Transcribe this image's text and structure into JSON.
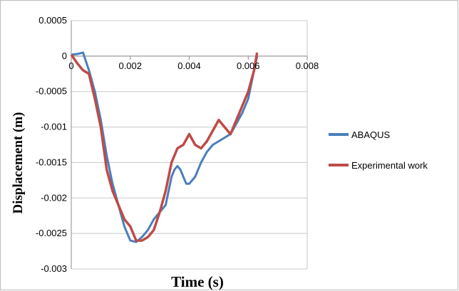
{
  "chart_data": {
    "type": "line",
    "xlabel": "Time (s)",
    "ylabel": "Displacement (m)",
    "xlim": [
      0,
      0.008
    ],
    "ylim": [
      -0.003,
      0.0005
    ],
    "x_ticks": [
      "0",
      "0.002",
      "0.004",
      "0.006",
      "0.008"
    ],
    "y_ticks": [
      "0.0005",
      "0",
      "-0.0005",
      "-0.001",
      "-0.0015",
      "-0.002",
      "-0.0025",
      "-0.003"
    ],
    "grid": "horizontal",
    "legend_position": "right",
    "series": [
      {
        "name": "ABAQUS",
        "color": "#4a7ebb",
        "x": [
          0,
          0.0002,
          0.0004,
          0.0006,
          0.0008,
          0.001,
          0.0012,
          0.0014,
          0.0016,
          0.0018,
          0.002,
          0.0022,
          0.0024,
          0.0026,
          0.0028,
          0.003,
          0.0032,
          0.0034,
          0.0035,
          0.0036,
          0.0037,
          0.0038,
          0.0039,
          0.004,
          0.0042,
          0.0044,
          0.0046,
          0.0048,
          0.005,
          0.0052,
          0.0054,
          0.0056,
          0.0058,
          0.006,
          0.0062,
          0.0063
        ],
        "y": [
          2e-05,
          3e-05,
          5e-05,
          -0.0002,
          -0.0005,
          -0.0009,
          -0.0014,
          -0.0018,
          -0.0021,
          -0.0024,
          -0.0026,
          -0.00262,
          -0.00255,
          -0.00245,
          -0.0023,
          -0.0022,
          -0.0021,
          -0.0017,
          -0.0016,
          -0.00155,
          -0.0016,
          -0.0017,
          -0.0018,
          -0.0018,
          -0.0017,
          -0.0015,
          -0.00135,
          -0.00125,
          -0.0012,
          -0.00115,
          -0.0011,
          -0.00095,
          -0.0008,
          -0.0006,
          -0.0002,
          0.0
        ]
      },
      {
        "name": "Experimental work",
        "color": "#be4b48",
        "x": [
          0,
          0.0002,
          0.0004,
          0.0006,
          0.0008,
          0.001,
          0.0012,
          0.0014,
          0.0016,
          0.0018,
          0.002,
          0.0022,
          0.0024,
          0.0026,
          0.0028,
          0.003,
          0.0032,
          0.0034,
          0.0036,
          0.0038,
          0.004,
          0.0042,
          0.0044,
          0.0046,
          0.0048,
          0.005,
          0.0052,
          0.0054,
          0.0056,
          0.0058,
          0.006,
          0.0062,
          0.0063
        ],
        "y": [
          2e-05,
          -0.0001,
          -0.0002,
          -0.00025,
          -0.0006,
          -0.001,
          -0.0016,
          -0.0019,
          -0.0021,
          -0.0023,
          -0.0024,
          -0.0026,
          -0.0026,
          -0.00255,
          -0.00245,
          -0.0022,
          -0.0019,
          -0.0015,
          -0.0013,
          -0.00125,
          -0.0011,
          -0.00125,
          -0.0013,
          -0.0012,
          -0.00105,
          -0.0009,
          -0.001,
          -0.0011,
          -0.0009,
          -0.0007,
          -0.0005,
          -0.0002,
          5e-05
        ]
      }
    ]
  }
}
